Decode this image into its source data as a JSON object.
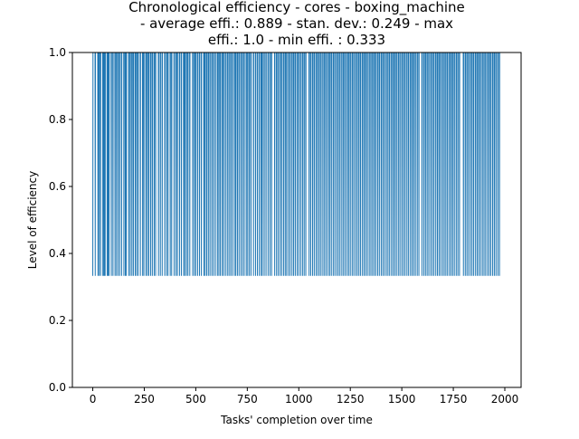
{
  "chart_data": {
    "type": "line",
    "title_lines": [
      "Chronological efficiency - cores - boxing_machine",
      "- average effi.: 0.889 - stan. dev.: 0.249 - max",
      "effi.: 1.0 - min effi. : 0.333"
    ],
    "xlabel": "Tasks' completion over time",
    "ylabel": "Level of efficiency",
    "xlim": [
      -99,
      2079
    ],
    "ylim": [
      0.0,
      1.0
    ],
    "x_ticks": [
      0,
      250,
      500,
      750,
      1000,
      1250,
      1500,
      1750,
      2000
    ],
    "x_tick_labels": [
      "0",
      "250",
      "500",
      "750",
      "1000",
      "1250",
      "1500",
      "1750",
      "2000"
    ],
    "y_ticks": [
      0.0,
      0.2,
      0.4,
      0.6,
      0.8,
      1.0
    ],
    "y_tick_labels": [
      "0.0",
      "0.2",
      "0.4",
      "0.6",
      "0.8",
      "1.0"
    ],
    "series": [
      {
        "name": "efficiency",
        "color": "#1f77b4",
        "n_points": 1980,
        "x_range": [
          0,
          1979
        ],
        "values_set": [
          1.0,
          0.333
        ],
        "min_points": [
          0,
          12,
          25,
          31,
          38,
          49,
          52,
          57,
          60,
          70,
          75,
          79,
          90,
          98,
          108,
          115,
          123,
          131,
          140,
          151,
          158,
          163,
          175,
          182,
          190,
          197,
          206,
          213,
          220,
          231,
          242,
          248,
          258,
          265,
          272,
          281,
          289,
          298,
          305,
          319,
          328,
          337,
          349,
          358,
          365,
          376,
          383,
          395,
          404,
          411,
          421,
          430,
          441,
          447,
          455,
          462,
          471,
          485,
          493,
          500,
          509,
          518,
          527,
          539,
          545,
          553,
          561,
          569,
          578,
          586,
          595,
          605,
          612,
          619,
          628,
          635,
          644,
          653,
          661,
          669,
          677,
          687,
          694,
          702,
          710,
          719,
          727,
          735,
          745,
          752,
          760,
          768,
          780,
          790,
          799,
          808,
          817,
          823,
          832,
          841,
          851,
          860,
          868,
          883,
          892,
          900,
          909,
          917,
          926,
          934,
          941,
          950,
          958,
          967,
          975,
          983,
          992,
          1000,
          1009,
          1018,
          1026,
          1034,
          1050,
          1058,
          1067,
          1075,
          1084,
          1092,
          1100,
          1108,
          1117,
          1125,
          1133,
          1142,
          1150,
          1158,
          1167,
          1175,
          1184,
          1192,
          1200,
          1209,
          1217,
          1225,
          1234,
          1242,
          1250,
          1259,
          1267,
          1276,
          1284,
          1292,
          1300,
          1309,
          1317,
          1325,
          1333,
          1342,
          1350,
          1358,
          1366,
          1374,
          1383,
          1391,
          1400,
          1408,
          1416,
          1425,
          1433,
          1441,
          1450,
          1458,
          1466,
          1474,
          1483,
          1491,
          1500,
          1508,
          1516,
          1525,
          1533,
          1542,
          1550,
          1558,
          1566,
          1575,
          1583,
          1598,
          1607,
          1615,
          1623,
          1631,
          1640,
          1648,
          1656,
          1665,
          1673,
          1681,
          1689,
          1698,
          1706,
          1714,
          1722,
          1731,
          1739,
          1747,
          1755,
          1764,
          1772,
          1780,
          1799,
          1808,
          1816,
          1824,
          1833,
          1841,
          1849,
          1858,
          1866,
          1874,
          1882,
          1891,
          1899,
          1907,
          1916,
          1924,
          1932,
          1941,
          1949,
          1957,
          1966,
          1974
        ]
      }
    ]
  }
}
